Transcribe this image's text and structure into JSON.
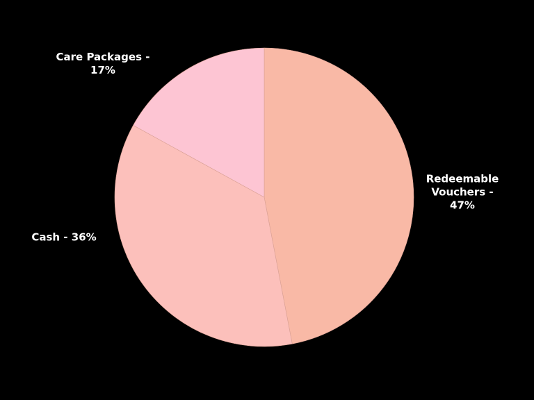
{
  "chart_data": {
    "type": "pie",
    "values": [
      47,
      36,
      17
    ],
    "value_labels": [
      "Redeemable Vouchers - 47%",
      "Cash - 36%",
      "Care Packages - 17%"
    ],
    "colors": [
      "#f9b9a6",
      "#fcc0bb",
      "#fdc5d3"
    ]
  }
}
